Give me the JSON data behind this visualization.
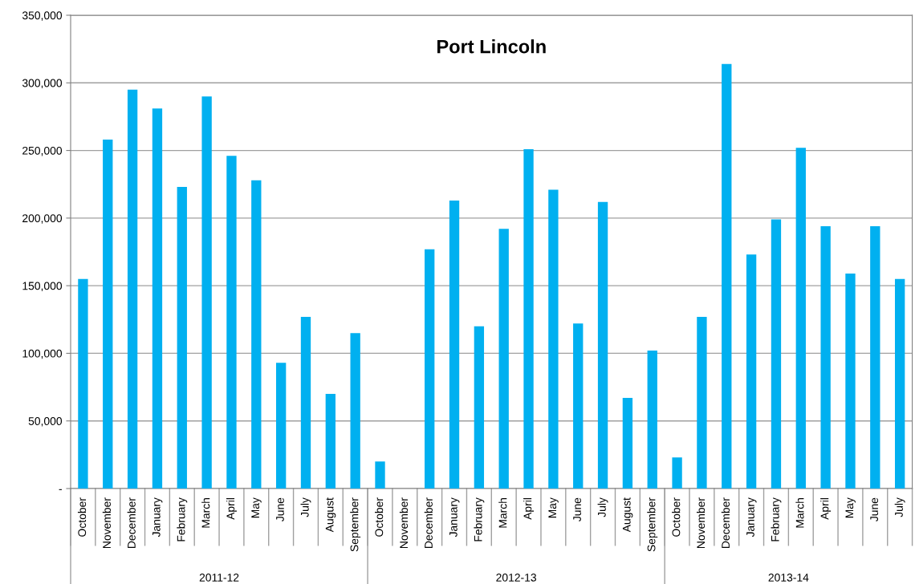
{
  "chart_data": {
    "type": "bar",
    "title": "Port Lincoln",
    "categories": [
      "October",
      "November",
      "December",
      "January",
      "February",
      "March",
      "April",
      "May",
      "June",
      "July",
      "August",
      "September",
      "October",
      "November",
      "December",
      "January",
      "February",
      "March",
      "April",
      "May",
      "June",
      "July",
      "August",
      "September",
      "October",
      "November",
      "December",
      "January",
      "February",
      "March",
      "April",
      "May",
      "June",
      "July"
    ],
    "values": [
      155000,
      258000,
      295000,
      281000,
      223000,
      290000,
      246000,
      228000,
      93000,
      127000,
      70000,
      115000,
      20000,
      0,
      177000,
      213000,
      120000,
      192000,
      251000,
      221000,
      122000,
      212000,
      67000,
      102000,
      23000,
      127000,
      314000,
      173000,
      199000,
      252000,
      194000,
      159000,
      194000,
      155000
    ],
    "color": "#00b0f0",
    "ylim": [
      0,
      350000
    ],
    "yticks": [
      {
        "value": 0,
        "label": "-"
      },
      {
        "value": 50000,
        "label": "50,000"
      },
      {
        "value": 100000,
        "label": "100,000"
      },
      {
        "value": 150000,
        "label": "150,000"
      },
      {
        "value": 200000,
        "label": "200,000"
      },
      {
        "value": 250000,
        "label": "250,000"
      },
      {
        "value": 300000,
        "label": "300,000"
      },
      {
        "value": 350000,
        "label": "350,000"
      }
    ],
    "grid": "y",
    "annotations": [
      "2011-12",
      "2012-13",
      "2013-14"
    ]
  }
}
